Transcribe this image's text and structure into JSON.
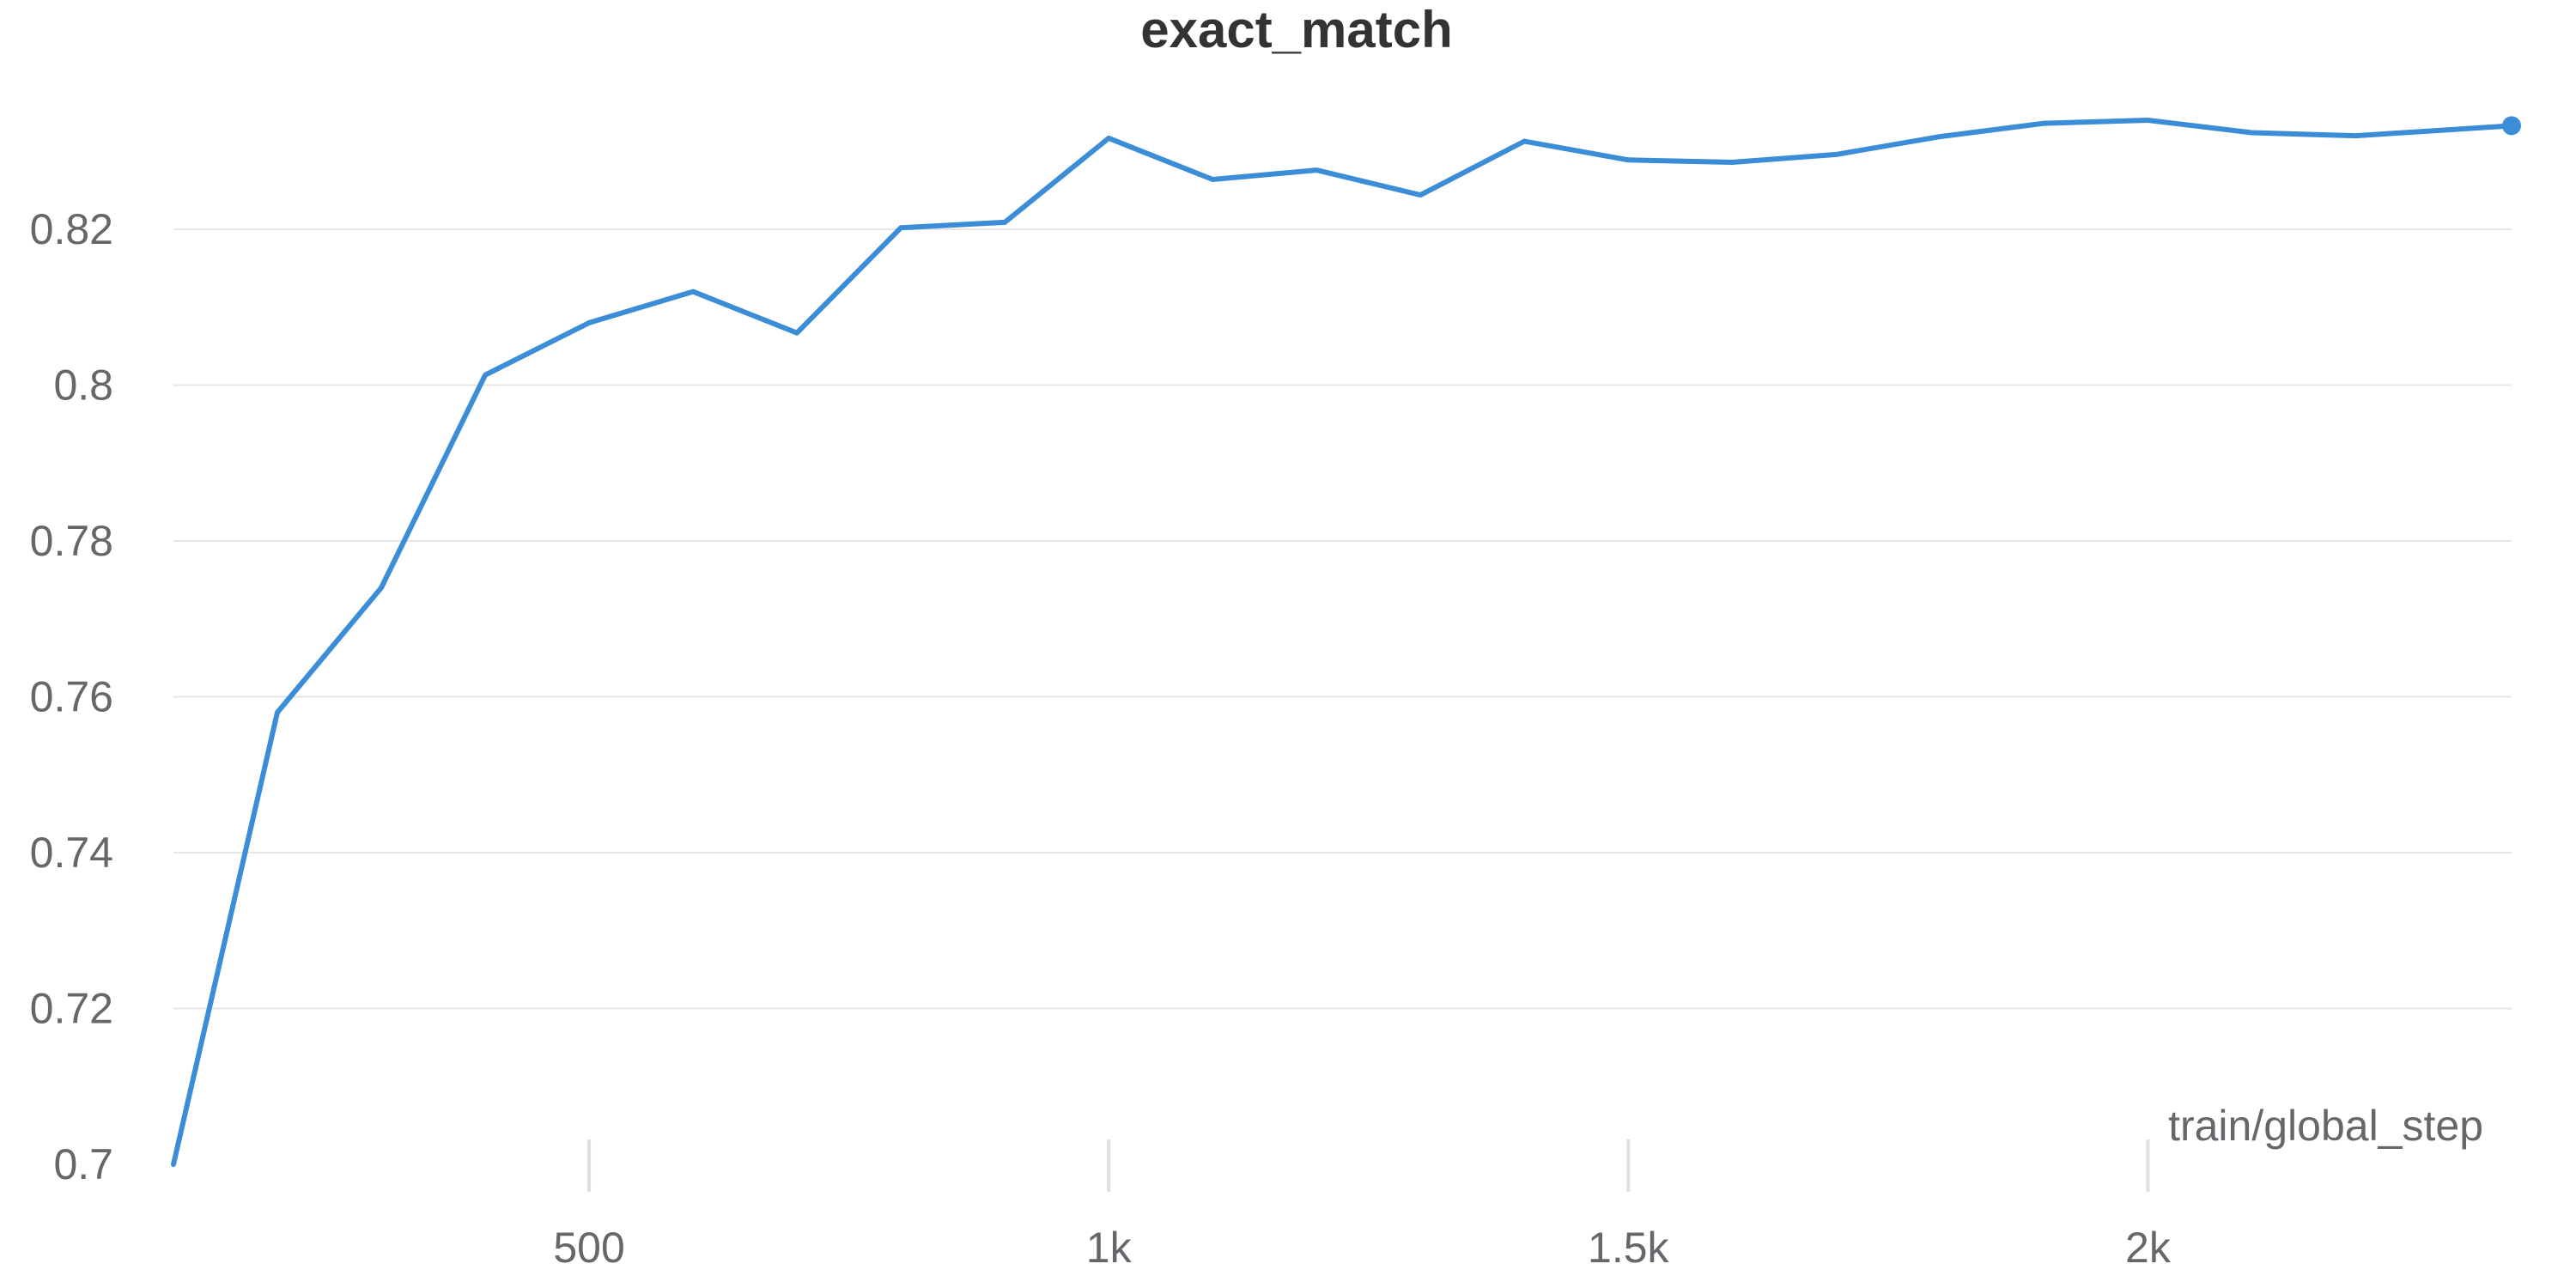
{
  "chart_data": {
    "type": "line",
    "title": "exact_match",
    "xlabel": "train/global_step",
    "ylabel": "",
    "xlim": [
      100,
      2350
    ],
    "ylim": [
      0.7,
      0.835
    ],
    "x_ticks": [
      500,
      1000,
      1500,
      2000
    ],
    "x_tick_labels": [
      "500",
      "1k",
      "1.5k",
      "2k"
    ],
    "y_ticks": [
      0.7,
      0.72,
      0.74,
      0.76,
      0.78,
      0.8,
      0.82
    ],
    "y_tick_labels": [
      "0.7",
      "0.72",
      "0.74",
      "0.76",
      "0.78",
      "0.8",
      "0.82"
    ],
    "grid": true,
    "series_color": "#3a8dd6",
    "series": [
      {
        "x": [
          100,
          200,
          300,
          400,
          500,
          600,
          700,
          800,
          900,
          1000,
          1100,
          1200,
          1300,
          1400,
          1500,
          1600,
          1700,
          1800,
          1900,
          2000,
          2100,
          2200,
          2350
        ],
        "values": [
          0.7,
          0.758,
          0.774,
          0.8013,
          0.808,
          0.812,
          0.8067,
          0.8202,
          0.8209,
          0.8317,
          0.8264,
          0.8276,
          0.8244,
          0.8313,
          0.8289,
          0.8286,
          0.8296,
          0.8319,
          0.8336,
          0.834,
          0.8324,
          0.832,
          0.8333
        ]
      }
    ]
  }
}
